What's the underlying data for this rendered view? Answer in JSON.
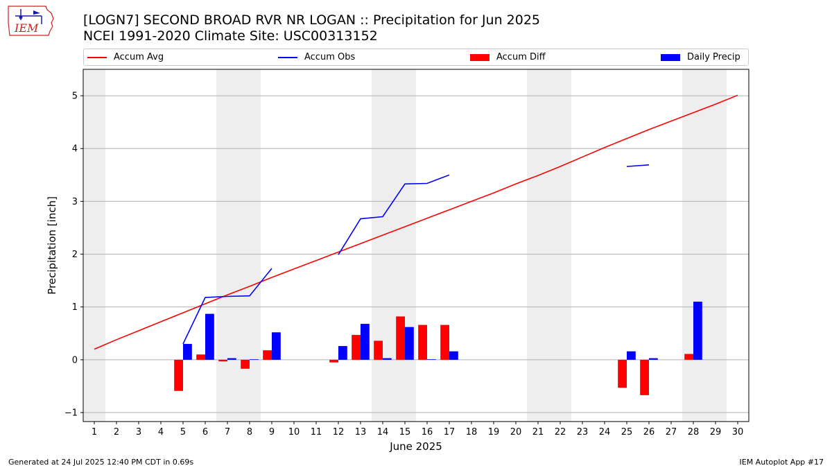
{
  "header": {
    "title_line1": "[LOGN7] SECOND BROAD RVR NR LOGAN :: Precipitation for Jun 2025",
    "title_line2": "NCEI 1991-2020 Climate Site: USC00313152",
    "logo_text": "IEM"
  },
  "footer": {
    "left": "Generated at 24 Jul 2025 12:40 PM CDT in 0.69s",
    "right": "IEM Autoplot App #17"
  },
  "colors": {
    "avg": "#ff0000",
    "obs": "#0000ff",
    "diff": "#ff0000",
    "daily": "#0000ff",
    "weekend_shade": "#eeeeee",
    "grid": "#b0b0b0"
  },
  "chart_data": {
    "type": "bar",
    "xlabel": "June 2025",
    "ylabel": "Precipitation [inch]",
    "xlim": [
      0.5,
      30.5
    ],
    "ylim": [
      -1.17,
      5.5
    ],
    "yticks": [
      -1,
      0,
      1,
      2,
      3,
      4,
      5
    ],
    "ytick_labels": [
      "−1",
      "0",
      "1",
      "2",
      "3",
      "4",
      "5"
    ],
    "days": [
      1,
      2,
      3,
      4,
      5,
      6,
      7,
      8,
      9,
      10,
      11,
      12,
      13,
      14,
      15,
      16,
      17,
      18,
      19,
      20,
      21,
      22,
      23,
      24,
      25,
      26,
      27,
      28,
      29,
      30
    ],
    "shaded_day_ranges": [
      [
        0.5,
        1.5
      ],
      [
        6.5,
        8.5
      ],
      [
        13.5,
        15.5
      ],
      [
        20.5,
        22.5
      ],
      [
        27.5,
        29.5
      ]
    ],
    "legend": [
      {
        "label": "Accum Avg",
        "kind": "line",
        "color": "#ff0000"
      },
      {
        "label": "Accum Obs",
        "kind": "line",
        "color": "#0000ff"
      },
      {
        "label": "Accum Diff",
        "kind": "bar",
        "color": "#ff0000"
      },
      {
        "label": "Daily Precip",
        "kind": "bar",
        "color": "#0000ff"
      }
    ],
    "series": [
      {
        "name": "Accum Avg",
        "type": "line",
        "values": [
          0.2,
          0.38,
          0.55,
          0.72,
          0.89,
          1.06,
          1.23,
          1.39,
          1.56,
          1.72,
          1.88,
          2.04,
          2.2,
          2.36,
          2.52,
          2.68,
          2.84,
          3.0,
          3.16,
          3.33,
          3.49,
          3.66,
          3.84,
          4.02,
          4.19,
          4.36,
          4.52,
          4.68,
          4.84,
          5.01
        ]
      },
      {
        "name": "Accum Obs",
        "type": "line",
        "values": [
          null,
          null,
          null,
          null,
          0.3,
          1.18,
          1.2,
          1.21,
          1.73,
          null,
          null,
          1.99,
          2.67,
          2.71,
          3.33,
          3.34,
          3.5,
          null,
          null,
          null,
          null,
          null,
          null,
          null,
          3.66,
          3.69,
          null,
          null,
          null,
          null
        ]
      },
      {
        "name": "Accum Diff",
        "type": "bar",
        "values": [
          null,
          null,
          null,
          null,
          -0.59,
          0.1,
          -0.03,
          -0.17,
          0.18,
          null,
          null,
          -0.05,
          0.47,
          0.36,
          0.82,
          0.66,
          0.66,
          null,
          null,
          null,
          null,
          null,
          null,
          null,
          -0.53,
          -0.67,
          null,
          0.11,
          null,
          null
        ]
      },
      {
        "name": "Daily Precip",
        "type": "bar",
        "values": [
          null,
          null,
          null,
          null,
          0.3,
          0.87,
          0.03,
          0.01,
          0.52,
          null,
          null,
          0.26,
          0.68,
          0.03,
          0.62,
          0.01,
          0.16,
          null,
          null,
          null,
          null,
          null,
          null,
          null,
          0.16,
          0.03,
          null,
          1.1,
          null,
          null
        ]
      }
    ]
  }
}
